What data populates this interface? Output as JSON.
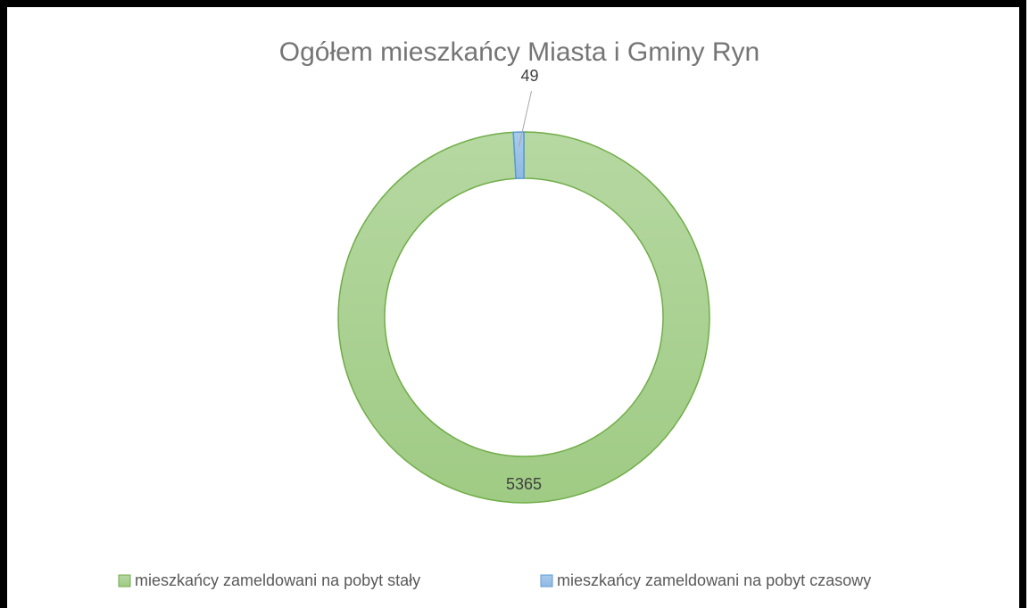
{
  "chart_data": {
    "type": "donut",
    "title": "Ogółem mieszkańcy Miasta i Gminy Ryn",
    "categories": [
      "mieszkańcy zameldowani na pobyt stały",
      "mieszkańcy zameldowani na pobyt czasowy"
    ],
    "values": [
      5365,
      49
    ],
    "colors": [
      "#a9d18e",
      "#9dc3e6"
    ],
    "legend": "bottom"
  }
}
